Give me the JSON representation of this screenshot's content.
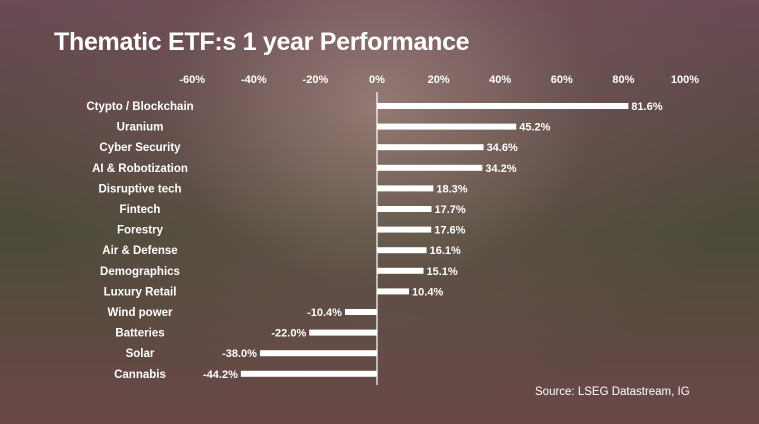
{
  "chart_data": {
    "type": "bar",
    "orientation": "horizontal",
    "title": "Thematic ETF:s 1 year Performance",
    "source": "Source: LSEG Datastream, IG",
    "xlim": [
      -60,
      100
    ],
    "x_ticks": [
      "-60%",
      "-40%",
      "-20%",
      "0%",
      "20%",
      "40%",
      "60%",
      "80%",
      "100%"
    ],
    "x_tick_values": [
      -60,
      -40,
      -20,
      0,
      20,
      40,
      60,
      80,
      100
    ],
    "grid": false,
    "bar_color": "#ffffff",
    "categories": [
      "Ctypto / Blockchain",
      "Uranium",
      "Cyber Security",
      "AI & Robotization",
      "Disruptive tech",
      "Fintech",
      "Forestry",
      "Air & Defense",
      "Demographics",
      "Luxury Retail",
      "Wind power",
      "Batteries",
      "Solar",
      "Cannabis"
    ],
    "values": [
      81.6,
      45.2,
      34.6,
      34.2,
      18.3,
      17.7,
      17.6,
      16.1,
      15.1,
      10.4,
      -10.4,
      -22.0,
      -38.0,
      -44.2
    ],
    "labels": [
      "81.6%",
      "45.2%",
      "34.6%",
      "34.2%",
      "18.3%",
      "17.7%",
      "17.6%",
      "16.1%",
      "15.1%",
      "10.4%",
      "-10.4%",
      "-22.0%",
      "-38.0%",
      "-44.2%"
    ]
  }
}
